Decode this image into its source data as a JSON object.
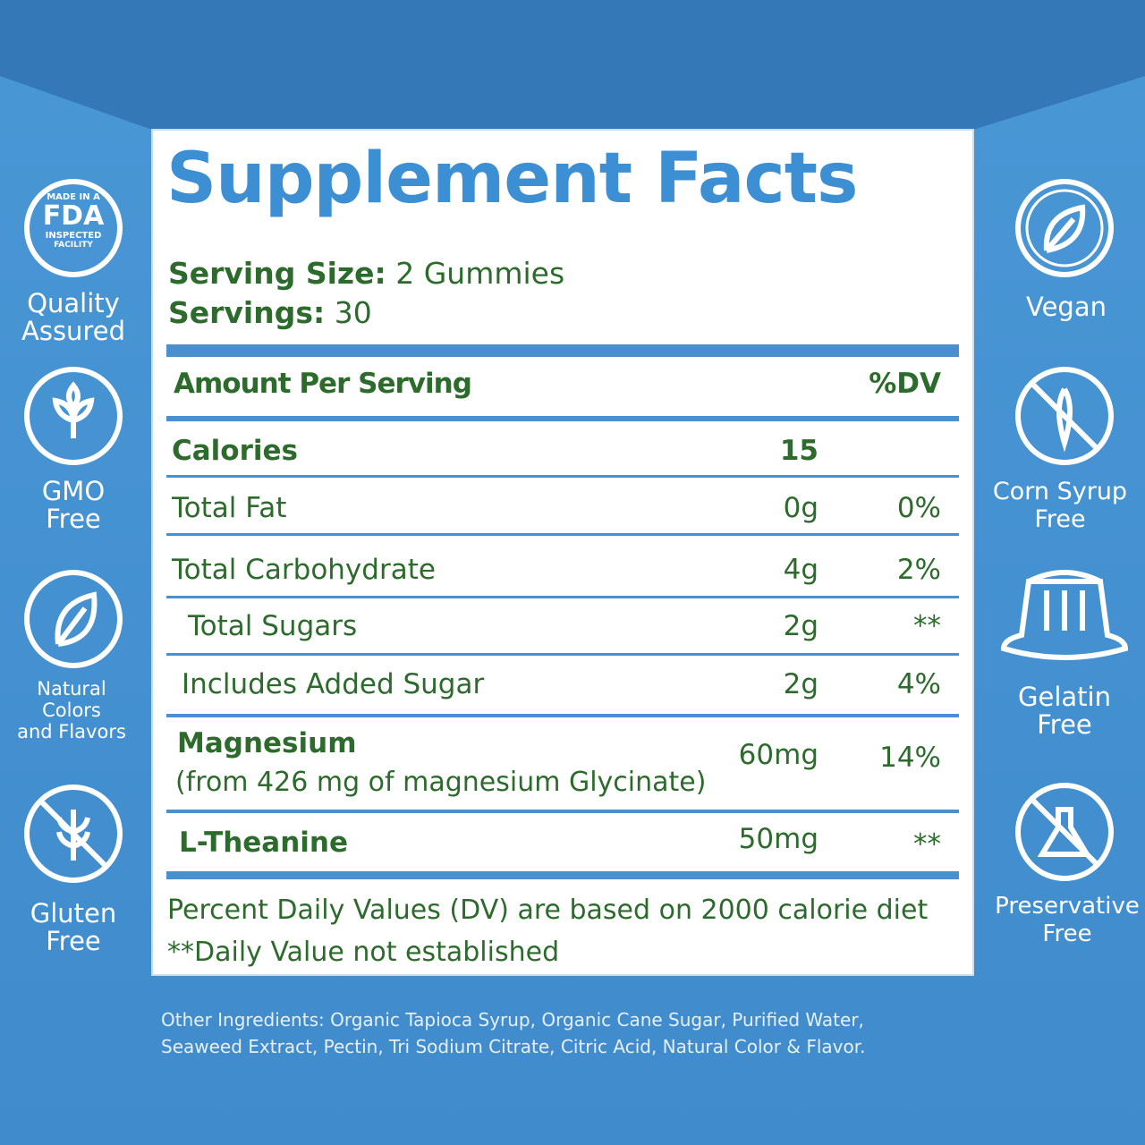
{
  "badges_left": [
    {
      "lines": [
        "Quality",
        "Assured"
      ],
      "seal": [
        "MADE IN A",
        "FDA",
        "INSPECTED",
        "FACILITY"
      ]
    },
    {
      "lines": [
        "GMO",
        "Free"
      ]
    },
    {
      "lines": [
        "Natural",
        "Colors",
        "and Flavors"
      ]
    },
    {
      "lines": [
        "Gluten",
        "Free"
      ]
    }
  ],
  "badges_right": [
    {
      "lines": [
        "Vegan"
      ]
    },
    {
      "lines": [
        "Corn Syrup",
        "Free"
      ]
    },
    {
      "lines": [
        "Gelatin",
        "Free"
      ]
    },
    {
      "lines": [
        "Preservative",
        "Free"
      ]
    }
  ],
  "panel": {
    "title": "Supplement Facts",
    "serving_size": {
      "label": "Serving Size:",
      "value": "2 Gummies"
    },
    "servings": {
      "label": "Servings:",
      "value": "30"
    },
    "header": {
      "amount": "Amount Per Serving",
      "dv": "%DV"
    },
    "rows": [
      {
        "name": "Calories",
        "amount": "15"
      },
      {
        "name": "Total Fat",
        "amount": "0g",
        "dv": "0%"
      },
      {
        "name": "Total Carbohydrate",
        "amount": "4g",
        "dv": "2%"
      },
      {
        "name": "Total Sugars",
        "amount": "2g",
        "dv": "**"
      },
      {
        "name": "Includes Added Sugar",
        "amount": "2g",
        "dv": "4%"
      },
      {
        "name": "Magnesium",
        "note": "(from 426 mg of magnesium Glycinate)",
        "amount": "60mg",
        "dv": "14%"
      },
      {
        "name": "L-Theanine",
        "amount": "50mg",
        "dv": "**"
      }
    ],
    "footnotes": [
      "Percent Daily Values (DV) are based on 2000 calorie diet",
      "**Daily Value not established"
    ]
  },
  "other_ingredients": [
    "Other Ingredients: Organic Tapioca Syrup, Organic Cane Sugar, Purified Water,",
    "Seaweed Extract, Pectin, Tri Sodium Citrate, Citric Acid, Natural Color & Flavor."
  ]
}
